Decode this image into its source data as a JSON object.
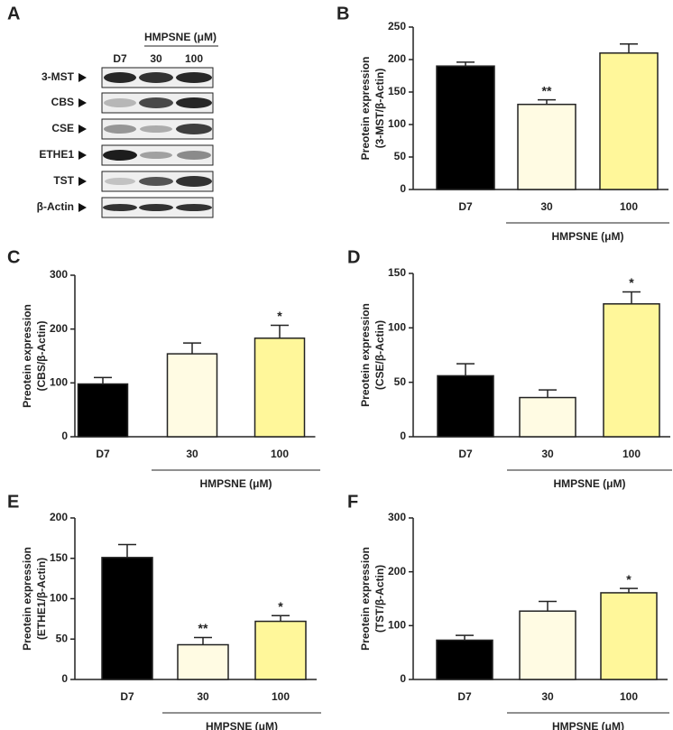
{
  "blot": {
    "panel_label": "A",
    "group_label": "HMPSNE (μM)",
    "lanes": [
      "D7",
      "30",
      "100"
    ],
    "rows": [
      "3-MST",
      "CBS",
      "CSE",
      "ETHE1",
      "TST",
      "β-Actin"
    ]
  },
  "chart_data": [
    {
      "type": "bar",
      "panel_label": "B",
      "ylabel": "Preotein expression",
      "ylabel2": "(3-MST/β-Actin)",
      "categories": [
        "D7",
        "30",
        "100"
      ],
      "group_label": "HMPSNE (μM)",
      "values": [
        190,
        131,
        210
      ],
      "errors": [
        6,
        7,
        14
      ],
      "annotations": [
        null,
        "**",
        null
      ],
      "colors": [
        "#000000",
        "#fffbe3",
        "#fff79a"
      ],
      "ylim": [
        0,
        250
      ],
      "yticks": [
        0,
        50,
        100,
        150,
        200,
        250
      ]
    },
    {
      "type": "bar",
      "panel_label": "C",
      "ylabel": "Preotein expression",
      "ylabel2": "(CBS/β-Actin)",
      "categories": [
        "D7",
        "30",
        "100"
      ],
      "group_label": "HMPSNE (μM)",
      "values": [
        98,
        154,
        183
      ],
      "errors": [
        12,
        20,
        24
      ],
      "annotations": [
        null,
        null,
        "*"
      ],
      "colors": [
        "#000000",
        "#fffbe3",
        "#fff79a"
      ],
      "ylim": [
        0,
        300
      ],
      "yticks": [
        0,
        100,
        200,
        300
      ]
    },
    {
      "type": "bar",
      "panel_label": "D",
      "ylabel": "Preotein expression",
      "ylabel2": "(CSE/β-Actin)",
      "categories": [
        "D7",
        "30",
        "100"
      ],
      "group_label": "HMPSNE (μM)",
      "values": [
        56,
        36,
        122
      ],
      "errors": [
        11,
        7,
        11
      ],
      "annotations": [
        null,
        null,
        "*"
      ],
      "colors": [
        "#000000",
        "#fffbe3",
        "#fff79a"
      ],
      "ylim": [
        0,
        150
      ],
      "yticks": [
        0,
        50,
        100,
        150
      ]
    },
    {
      "type": "bar",
      "panel_label": "E",
      "ylabel": "Preotein expression",
      "ylabel2": "(ETHE1/β-Actin)",
      "categories": [
        "D7",
        "30",
        "100"
      ],
      "group_label": "HMPSNE (μM)",
      "values": [
        151,
        43,
        72
      ],
      "errors": [
        16,
        9,
        7
      ],
      "annotations": [
        null,
        "**",
        "*"
      ],
      "colors": [
        "#000000",
        "#fffbe3",
        "#fff79a"
      ],
      "ylim": [
        0,
        200
      ],
      "yticks": [
        0,
        50,
        100,
        150,
        200
      ]
    },
    {
      "type": "bar",
      "panel_label": "F",
      "ylabel": "Preotein expression",
      "ylabel2": "(TST/β-Actin)",
      "categories": [
        "D7",
        "30",
        "100"
      ],
      "group_label": "HMPSNE (μM)",
      "values": [
        73,
        127,
        161
      ],
      "errors": [
        9,
        18,
        8
      ],
      "annotations": [
        null,
        null,
        "*"
      ],
      "colors": [
        "#000000",
        "#fffbe3",
        "#fff79a"
      ],
      "ylim": [
        0,
        300
      ],
      "yticks": [
        0,
        100,
        200,
        300
      ]
    }
  ]
}
